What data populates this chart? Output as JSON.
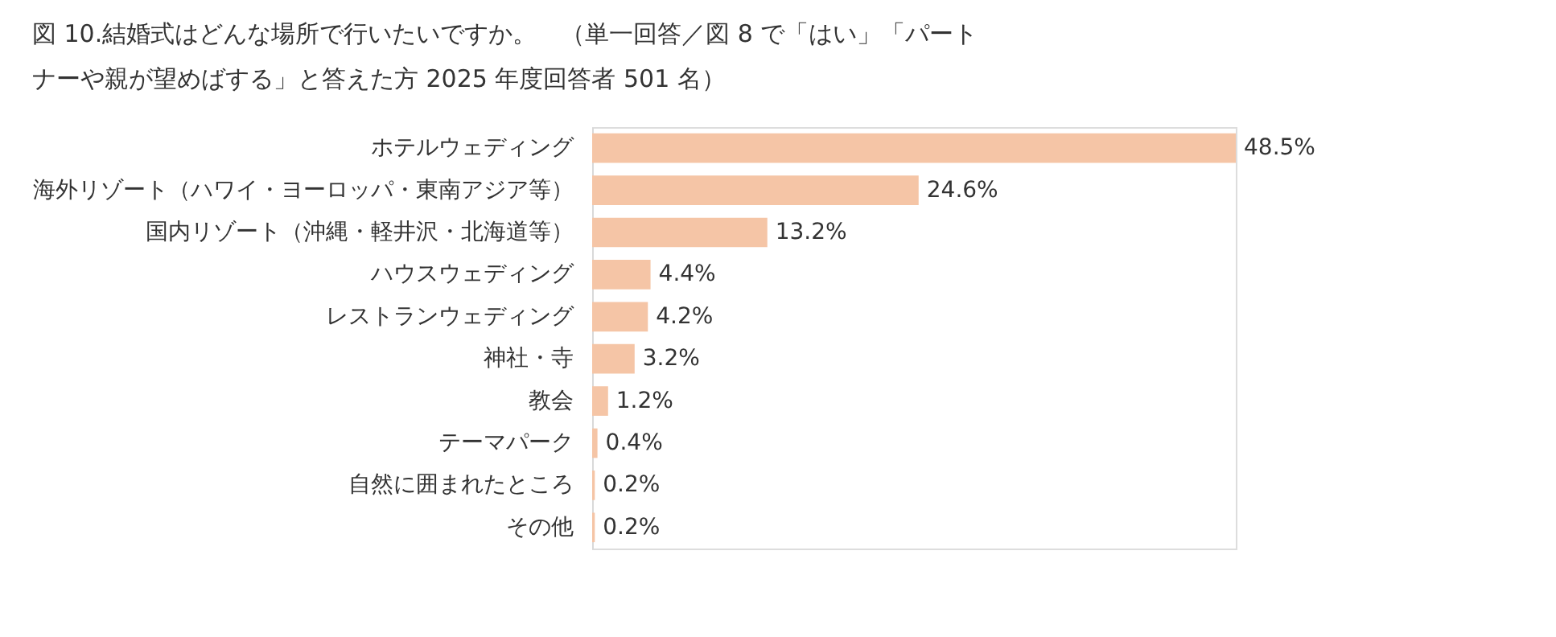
{
  "chart_data": {
    "type": "bar",
    "orientation": "horizontal",
    "title": "図 10.結婚式はどんな場所で行いたいですか。　（単一回答／図 8 で「はい」「パートナーや親が望めばする」と答えた方 2025 年度回答者 501 名）",
    "categories": [
      "ホテルウェディング",
      "海外リゾート（ハワイ・ヨーロッパ・東南アジア等）",
      "国内リゾート（沖縄・軽井沢・北海道等）",
      "ハウスウェディング",
      "レストランウェディング",
      "神社・寺",
      "教会",
      "テーマパーク",
      "自然に囲まれたところ",
      "その他"
    ],
    "values": [
      48.5,
      24.6,
      13.2,
      4.4,
      4.2,
      3.2,
      1.2,
      0.4,
      0.2,
      0.2
    ],
    "value_labels": [
      "48.5%",
      "24.6%",
      "13.2%",
      "4.4%",
      "4.2%",
      "3.2%",
      "1.2%",
      "0.4%",
      "0.2%",
      "0.2%"
    ],
    "color": "#f5c5a6"
  }
}
